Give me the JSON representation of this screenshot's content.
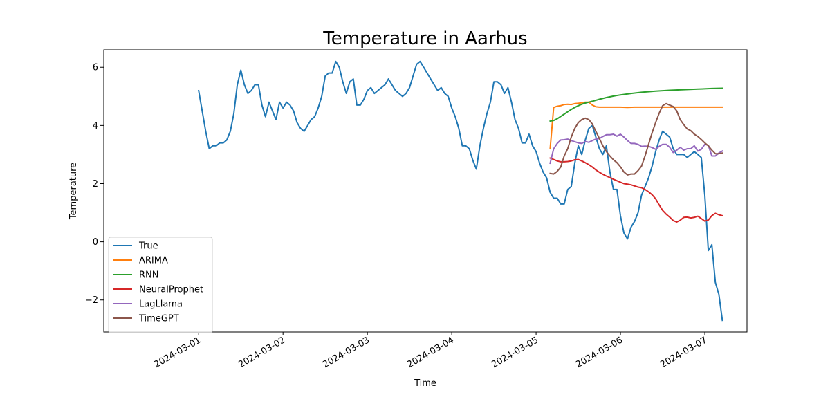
{
  "chart_data": {
    "type": "line",
    "title": "Temperature in Aarhus",
    "xlabel": "Time",
    "ylabel": "Temperature",
    "x_ticks": [
      "2024-03-01",
      "2024-03-02",
      "2024-03-03",
      "2024-03-04",
      "2024-03-05",
      "2024-03-06",
      "2024-03-07"
    ],
    "y_ticks": [
      -2,
      0,
      2,
      4,
      6
    ],
    "xlim": [
      "2024-02-28T21:00",
      "2024-03-07T12:00"
    ],
    "ylim": [
      -3.1,
      6.6
    ],
    "grid": false,
    "legend_position": "lower left",
    "series": [
      {
        "name": "True",
        "color": "#1f77b4",
        "x": [
          "2024-03-01T00:00",
          "2024-03-01T01:00",
          "2024-03-01T02:00",
          "2024-03-01T03:00",
          "2024-03-01T04:00",
          "2024-03-01T05:00",
          "2024-03-01T06:00",
          "2024-03-01T07:00",
          "2024-03-01T08:00",
          "2024-03-01T09:00",
          "2024-03-01T10:00",
          "2024-03-01T11:00",
          "2024-03-01T12:00",
          "2024-03-01T13:00",
          "2024-03-01T14:00",
          "2024-03-01T15:00",
          "2024-03-01T16:00",
          "2024-03-01T17:00",
          "2024-03-01T18:00",
          "2024-03-01T19:00",
          "2024-03-01T20:00",
          "2024-03-01T21:00",
          "2024-03-01T22:00",
          "2024-03-01T23:00",
          "2024-03-02T00:00",
          "2024-03-02T01:00",
          "2024-03-02T02:00",
          "2024-03-02T03:00",
          "2024-03-02T04:00",
          "2024-03-02T05:00",
          "2024-03-02T06:00",
          "2024-03-02T07:00",
          "2024-03-02T08:00",
          "2024-03-02T09:00",
          "2024-03-02T10:00",
          "2024-03-02T11:00",
          "2024-03-02T12:00",
          "2024-03-02T13:00",
          "2024-03-02T14:00",
          "2024-03-02T15:00",
          "2024-03-02T16:00",
          "2024-03-02T17:00",
          "2024-03-02T18:00",
          "2024-03-02T19:00",
          "2024-03-02T20:00",
          "2024-03-02T21:00",
          "2024-03-02T22:00",
          "2024-03-02T23:00",
          "2024-03-03T00:00",
          "2024-03-03T01:00",
          "2024-03-03T02:00",
          "2024-03-03T03:00",
          "2024-03-03T04:00",
          "2024-03-03T05:00",
          "2024-03-03T06:00",
          "2024-03-03T07:00",
          "2024-03-03T08:00",
          "2024-03-03T09:00",
          "2024-03-03T10:00",
          "2024-03-03T11:00",
          "2024-03-03T12:00",
          "2024-03-03T13:00",
          "2024-03-03T14:00",
          "2024-03-03T15:00",
          "2024-03-03T16:00",
          "2024-03-03T17:00",
          "2024-03-03T18:00",
          "2024-03-03T19:00",
          "2024-03-03T20:00",
          "2024-03-03T21:00",
          "2024-03-03T22:00",
          "2024-03-03T23:00",
          "2024-03-04T00:00",
          "2024-03-04T01:00",
          "2024-03-04T02:00",
          "2024-03-04T03:00",
          "2024-03-04T04:00",
          "2024-03-04T05:00",
          "2024-03-04T06:00",
          "2024-03-04T07:00",
          "2024-03-04T08:00",
          "2024-03-04T09:00",
          "2024-03-04T10:00",
          "2024-03-04T11:00",
          "2024-03-04T12:00",
          "2024-03-04T13:00",
          "2024-03-04T14:00",
          "2024-03-04T15:00",
          "2024-03-04T16:00",
          "2024-03-04T17:00",
          "2024-03-04T18:00",
          "2024-03-04T19:00",
          "2024-03-04T20:00",
          "2024-03-04T21:00",
          "2024-03-04T22:00",
          "2024-03-04T23:00",
          "2024-03-05T00:00",
          "2024-03-05T01:00",
          "2024-03-05T02:00",
          "2024-03-05T03:00",
          "2024-03-05T04:00",
          "2024-03-05T05:00",
          "2024-03-05T06:00",
          "2024-03-05T07:00",
          "2024-03-05T08:00",
          "2024-03-05T09:00",
          "2024-03-05T10:00",
          "2024-03-05T11:00",
          "2024-03-05T12:00",
          "2024-03-05T13:00",
          "2024-03-05T14:00",
          "2024-03-05T15:00",
          "2024-03-05T16:00",
          "2024-03-05T17:00",
          "2024-03-05T18:00",
          "2024-03-05T19:00",
          "2024-03-05T20:00",
          "2024-03-05T21:00",
          "2024-03-05T22:00",
          "2024-03-05T23:00",
          "2024-03-06T00:00",
          "2024-03-06T01:00",
          "2024-03-06T02:00",
          "2024-03-06T03:00",
          "2024-03-06T04:00",
          "2024-03-06T05:00",
          "2024-03-06T06:00",
          "2024-03-06T07:00",
          "2024-03-06T08:00",
          "2024-03-06T09:00",
          "2024-03-06T10:00",
          "2024-03-06T11:00",
          "2024-03-06T12:00",
          "2024-03-06T13:00",
          "2024-03-06T14:00",
          "2024-03-06T15:00",
          "2024-03-06T16:00",
          "2024-03-06T17:00",
          "2024-03-06T18:00",
          "2024-03-06T19:00",
          "2024-03-06T20:00",
          "2024-03-06T21:00",
          "2024-03-06T22:00",
          "2024-03-06T23:00",
          "2024-03-07T00:00",
          "2024-03-07T01:00",
          "2024-03-07T02:00",
          "2024-03-07T03:00",
          "2024-03-07T04:00",
          "2024-03-07T05:00"
        ],
        "y": [
          5.2,
          4.5,
          3.8,
          3.2,
          3.3,
          3.3,
          3.4,
          3.4,
          3.5,
          3.8,
          4.4,
          5.4,
          5.9,
          5.4,
          5.1,
          5.2,
          5.4,
          5.4,
          4.7,
          4.3,
          4.8,
          4.5,
          4.2,
          4.8,
          4.6,
          4.8,
          4.7,
          4.5,
          4.1,
          3.9,
          3.8,
          4.0,
          4.2,
          4.3,
          4.6,
          5.0,
          5.7,
          5.8,
          5.8,
          6.2,
          6.0,
          5.5,
          5.1,
          5.5,
          5.6,
          4.7,
          4.7,
          4.9,
          5.2,
          5.3,
          5.1,
          5.2,
          5.3,
          5.4,
          5.6,
          5.4,
          5.2,
          5.1,
          5.0,
          5.1,
          5.3,
          5.7,
          6.1,
          6.2,
          6.0,
          5.8,
          5.6,
          5.4,
          5.2,
          5.3,
          5.1,
          5.0,
          4.6,
          4.3,
          3.9,
          3.3,
          3.3,
          3.2,
          2.8,
          2.5,
          3.3,
          3.9,
          4.4,
          4.8,
          5.5,
          5.5,
          5.4,
          5.1,
          5.3,
          4.8,
          4.2,
          3.9,
          3.4,
          3.4,
          3.7,
          3.3,
          3.1,
          2.7,
          2.4,
          2.2,
          1.7,
          1.5,
          1.5,
          1.3,
          1.3,
          1.8,
          1.9,
          2.7,
          3.3,
          3.0,
          3.5,
          3.9,
          4.0,
          3.6,
          3.2,
          3.0,
          3.3,
          2.4,
          1.8,
          1.8,
          0.9,
          0.3,
          0.1,
          0.5,
          0.7,
          1.0,
          1.6,
          1.9,
          2.2,
          2.6,
          3.1,
          3.5,
          3.8,
          3.7,
          3.6,
          3.2,
          3.0,
          3.0,
          3.0,
          2.9,
          3.0,
          3.1,
          3.0,
          2.9,
          1.6,
          -0.3,
          -0.1,
          -1.4,
          -1.8,
          -2.7
        ]
      },
      {
        "name": "ARIMA",
        "color": "#ff7f0e",
        "x": [
          "2024-03-05T04:00",
          "2024-03-05T05:00",
          "2024-03-05T06:00",
          "2024-03-05T07:00",
          "2024-03-05T08:00",
          "2024-03-05T09:00",
          "2024-03-05T10:00",
          "2024-03-05T11:00",
          "2024-03-05T12:00",
          "2024-03-05T13:00",
          "2024-03-05T14:00",
          "2024-03-05T15:00",
          "2024-03-05T16:00",
          "2024-03-05T17:00",
          "2024-03-05T18:00",
          "2024-03-05T19:00",
          "2024-03-05T20:00",
          "2024-03-05T21:00",
          "2024-03-05T22:00",
          "2024-03-05T23:00",
          "2024-03-06T00:00",
          "2024-03-06T02:00",
          "2024-03-06T04:00",
          "2024-03-06T08:00",
          "2024-03-06T16:00",
          "2024-03-07T00:00",
          "2024-03-07T05:00"
        ],
        "y": [
          3.2,
          4.62,
          4.66,
          4.68,
          4.72,
          4.73,
          4.72,
          4.75,
          4.76,
          4.78,
          4.8,
          4.8,
          4.7,
          4.64,
          4.63,
          4.63,
          4.63,
          4.63,
          4.63,
          4.63,
          4.63,
          4.62,
          4.63,
          4.63,
          4.63,
          4.63,
          4.63
        ]
      },
      {
        "name": "RNN",
        "color": "#2ca02c",
        "x": [
          "2024-03-05T04:00",
          "2024-03-05T05:00",
          "2024-03-05T06:00",
          "2024-03-05T07:00",
          "2024-03-05T08:00",
          "2024-03-05T09:00",
          "2024-03-05T10:00",
          "2024-03-05T11:00",
          "2024-03-05T12:00",
          "2024-03-05T13:00",
          "2024-03-05T14:00",
          "2024-03-05T15:00",
          "2024-03-05T16:00",
          "2024-03-05T18:00",
          "2024-03-05T20:00",
          "2024-03-05T22:00",
          "2024-03-06T00:00",
          "2024-03-06T03:00",
          "2024-03-06T06:00",
          "2024-03-06T10:00",
          "2024-03-06T14:00",
          "2024-03-06T18:00",
          "2024-03-06T22:00",
          "2024-03-07T02:00",
          "2024-03-07T05:00"
        ],
        "y": [
          4.15,
          4.17,
          4.23,
          4.31,
          4.39,
          4.47,
          4.55,
          4.62,
          4.68,
          4.73,
          4.77,
          4.8,
          4.83,
          4.9,
          4.96,
          5.01,
          5.05,
          5.1,
          5.14,
          5.18,
          5.21,
          5.23,
          5.25,
          5.27,
          5.28
        ]
      },
      {
        "name": "NeuralProphet",
        "color": "#d62728",
        "x": [
          "2024-03-05T04:00",
          "2024-03-05T05:00",
          "2024-03-05T06:00",
          "2024-03-05T07:00",
          "2024-03-05T08:00",
          "2024-03-05T09:00",
          "2024-03-05T10:00",
          "2024-03-05T11:00",
          "2024-03-05T12:00",
          "2024-03-05T13:00",
          "2024-03-05T14:00",
          "2024-03-05T15:00",
          "2024-03-05T16:00",
          "2024-03-05T17:00",
          "2024-03-05T18:00",
          "2024-03-05T19:00",
          "2024-03-05T20:00",
          "2024-03-05T21:00",
          "2024-03-05T22:00",
          "2024-03-05T23:00",
          "2024-03-06T00:00",
          "2024-03-06T01:00",
          "2024-03-06T02:00",
          "2024-03-06T03:00",
          "2024-03-06T04:00",
          "2024-03-06T05:00",
          "2024-03-06T06:00",
          "2024-03-06T07:00",
          "2024-03-06T08:00",
          "2024-03-06T09:00",
          "2024-03-06T10:00",
          "2024-03-06T11:00",
          "2024-03-06T12:00",
          "2024-03-06T13:00",
          "2024-03-06T14:00",
          "2024-03-06T15:00",
          "2024-03-06T16:00",
          "2024-03-06T17:00",
          "2024-03-06T18:00",
          "2024-03-06T19:00",
          "2024-03-06T20:00",
          "2024-03-06T21:00",
          "2024-03-06T22:00",
          "2024-03-06T23:00",
          "2024-03-07T00:00",
          "2024-03-07T01:00",
          "2024-03-07T02:00",
          "2024-03-07T03:00",
          "2024-03-07T04:00",
          "2024-03-07T05:00"
        ],
        "y": [
          2.88,
          2.83,
          2.78,
          2.75,
          2.75,
          2.76,
          2.78,
          2.82,
          2.83,
          2.78,
          2.72,
          2.65,
          2.57,
          2.47,
          2.39,
          2.32,
          2.26,
          2.21,
          2.15,
          2.1,
          2.05,
          2.0,
          1.98,
          1.96,
          1.92,
          1.88,
          1.86,
          1.8,
          1.72,
          1.62,
          1.48,
          1.27,
          1.08,
          0.95,
          0.85,
          0.73,
          0.68,
          0.74,
          0.84,
          0.85,
          0.82,
          0.84,
          0.88,
          0.8,
          0.71,
          0.75,
          0.9,
          0.98,
          0.93,
          0.9
        ]
      },
      {
        "name": "LagLlama",
        "color": "#9467bd",
        "x": [
          "2024-03-05T04:00",
          "2024-03-05T05:00",
          "2024-03-05T06:00",
          "2024-03-05T07:00",
          "2024-03-05T08:00",
          "2024-03-05T09:00",
          "2024-03-05T10:00",
          "2024-03-05T11:00",
          "2024-03-05T12:00",
          "2024-03-05T13:00",
          "2024-03-05T14:00",
          "2024-03-05T15:00",
          "2024-03-05T16:00",
          "2024-03-05T17:00",
          "2024-03-05T18:00",
          "2024-03-05T19:00",
          "2024-03-05T20:00",
          "2024-03-05T21:00",
          "2024-03-05T22:00",
          "2024-03-05T23:00",
          "2024-03-06T00:00",
          "2024-03-06T01:00",
          "2024-03-06T02:00",
          "2024-03-06T03:00",
          "2024-03-06T04:00",
          "2024-03-06T05:00",
          "2024-03-06T06:00",
          "2024-03-06T07:00",
          "2024-03-06T08:00",
          "2024-03-06T09:00",
          "2024-03-06T10:00",
          "2024-03-06T11:00",
          "2024-03-06T12:00",
          "2024-03-06T13:00",
          "2024-03-06T14:00",
          "2024-03-06T15:00",
          "2024-03-06T16:00",
          "2024-03-06T17:00",
          "2024-03-06T18:00",
          "2024-03-06T19:00",
          "2024-03-06T20:00",
          "2024-03-06T21:00",
          "2024-03-06T22:00",
          "2024-03-06T23:00",
          "2024-03-07T00:00",
          "2024-03-07T01:00",
          "2024-03-07T02:00",
          "2024-03-07T03:00",
          "2024-03-07T04:00",
          "2024-03-07T05:00"
        ],
        "y": [
          2.7,
          3.2,
          3.38,
          3.5,
          3.51,
          3.53,
          3.48,
          3.44,
          3.4,
          3.38,
          3.45,
          3.42,
          3.48,
          3.53,
          3.55,
          3.62,
          3.68,
          3.68,
          3.7,
          3.63,
          3.7,
          3.6,
          3.48,
          3.38,
          3.38,
          3.35,
          3.28,
          3.29,
          3.28,
          3.24,
          3.18,
          3.28,
          3.35,
          3.35,
          3.25,
          3.07,
          3.15,
          3.25,
          3.15,
          3.2,
          3.2,
          3.3,
          3.12,
          3.18,
          3.35,
          3.32,
          2.95,
          2.95,
          3.05,
          3.12
        ]
      },
      {
        "name": "TimeGPT",
        "color": "#8c564b",
        "x": [
          "2024-03-05T04:00",
          "2024-03-05T05:00",
          "2024-03-05T06:00",
          "2024-03-05T07:00",
          "2024-03-05T08:00",
          "2024-03-05T09:00",
          "2024-03-05T10:00",
          "2024-03-05T11:00",
          "2024-03-05T12:00",
          "2024-03-05T13:00",
          "2024-03-05T14:00",
          "2024-03-05T15:00",
          "2024-03-05T16:00",
          "2024-03-05T17:00",
          "2024-03-05T18:00",
          "2024-03-05T19:00",
          "2024-03-05T20:00",
          "2024-03-05T21:00",
          "2024-03-05T22:00",
          "2024-03-05T23:00",
          "2024-03-06T00:00",
          "2024-03-06T01:00",
          "2024-03-06T02:00",
          "2024-03-06T03:00",
          "2024-03-06T04:00",
          "2024-03-06T05:00",
          "2024-03-06T06:00",
          "2024-03-06T07:00",
          "2024-03-06T08:00",
          "2024-03-06T09:00",
          "2024-03-06T10:00",
          "2024-03-06T11:00",
          "2024-03-06T12:00",
          "2024-03-06T13:00",
          "2024-03-06T14:00",
          "2024-03-06T15:00",
          "2024-03-06T16:00",
          "2024-03-06T17:00",
          "2024-03-06T18:00",
          "2024-03-06T19:00",
          "2024-03-06T20:00",
          "2024-03-06T21:00",
          "2024-03-06T22:00",
          "2024-03-06T23:00",
          "2024-03-07T00:00",
          "2024-03-07T01:00",
          "2024-03-07T02:00",
          "2024-03-07T03:00",
          "2024-03-07T04:00",
          "2024-03-07T05:00"
        ],
        "y": [
          2.35,
          2.33,
          2.42,
          2.57,
          2.95,
          3.2,
          3.6,
          3.9,
          4.1,
          4.2,
          4.25,
          4.2,
          4.05,
          3.8,
          3.55,
          3.3,
          3.1,
          2.95,
          2.82,
          2.72,
          2.58,
          2.4,
          2.3,
          2.33,
          2.33,
          2.45,
          2.6,
          2.95,
          3.35,
          3.75,
          4.1,
          4.42,
          4.68,
          4.75,
          4.7,
          4.65,
          4.5,
          4.2,
          4.03,
          3.88,
          3.82,
          3.7,
          3.62,
          3.52,
          3.4,
          3.3,
          3.15,
          3.03,
          3.03,
          3.05
        ]
      }
    ]
  }
}
